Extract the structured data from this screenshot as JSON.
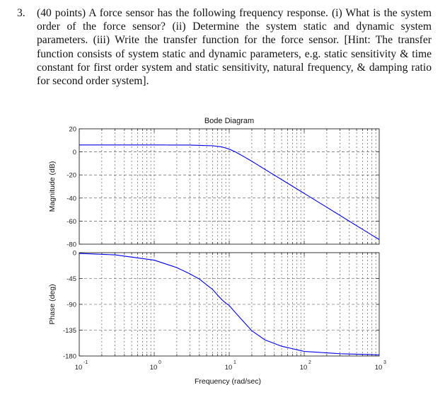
{
  "question": {
    "number": "3.",
    "text": "(40 points) A force sensor has the following frequency response. (i) What is the system order of the force sensor? (ii) Determine the system static and dynamic system parameters. (iii) Write the transfer function for the force sensor. [Hint: The transfer function consists of system static and dynamic parameters, e.g. static sensitivity & time constant for first order system and static sensitivity, natural frequency, & damping ratio for second order system]."
  },
  "chart_data": {
    "type": "line",
    "title": "Bode Diagram",
    "xlabel": "Frequency (rad/sec)",
    "xscale": "log",
    "xlim": [
      0.1,
      1000
    ],
    "x_ticks": [
      {
        "base": "10",
        "exp": "-1"
      },
      {
        "base": "10",
        "exp": "0"
      },
      {
        "base": "10",
        "exp": "1"
      },
      {
        "base": "10",
        "exp": "2"
      },
      {
        "base": "10",
        "exp": "3"
      }
    ],
    "grid": true,
    "line_color": "#0000e6",
    "panels": [
      {
        "name": "magnitude",
        "ylabel": "Magnitude (dB)",
        "ylim": [
          -80,
          20
        ],
        "y_ticks": [
          "20",
          "0",
          "-20",
          "-40",
          "-60",
          "-80"
        ],
        "series": [
          {
            "name": "Magnitude",
            "x": [
              0.1,
              1,
              3,
              6,
              8,
              10,
              12,
              15,
              20,
              30,
              50,
              100,
              200,
              500,
              1000
            ],
            "y": [
              6,
              6,
              5.9,
              5.3,
              4.3,
              2.4,
              0.1,
              -3.4,
              -8.1,
              -15.2,
              -24,
              -36,
              -48,
              -64,
              -76
            ]
          }
        ]
      },
      {
        "name": "phase",
        "ylabel": "Phase (deg)",
        "ylim": [
          -180,
          0
        ],
        "y_ticks": [
          "0",
          "-45",
          "-90",
          "-135",
          "-180"
        ],
        "series": [
          {
            "name": "Phase",
            "x": [
              0.1,
              0.3,
              1,
              2,
              3,
              4,
              5,
              6,
              7,
              8,
              9,
              10,
              12,
              15,
              20,
              30,
              50,
              100,
              300,
              1000
            ],
            "y": [
              -1.3,
              -3.8,
              -13,
              -26,
              -37,
              -46,
              -56,
              -64,
              -74,
              -82,
              -88,
              -92,
              -104,
              -118,
              -136,
              -152,
              -163,
              -172,
              -176,
              -178
            ]
          }
        ]
      }
    ]
  }
}
